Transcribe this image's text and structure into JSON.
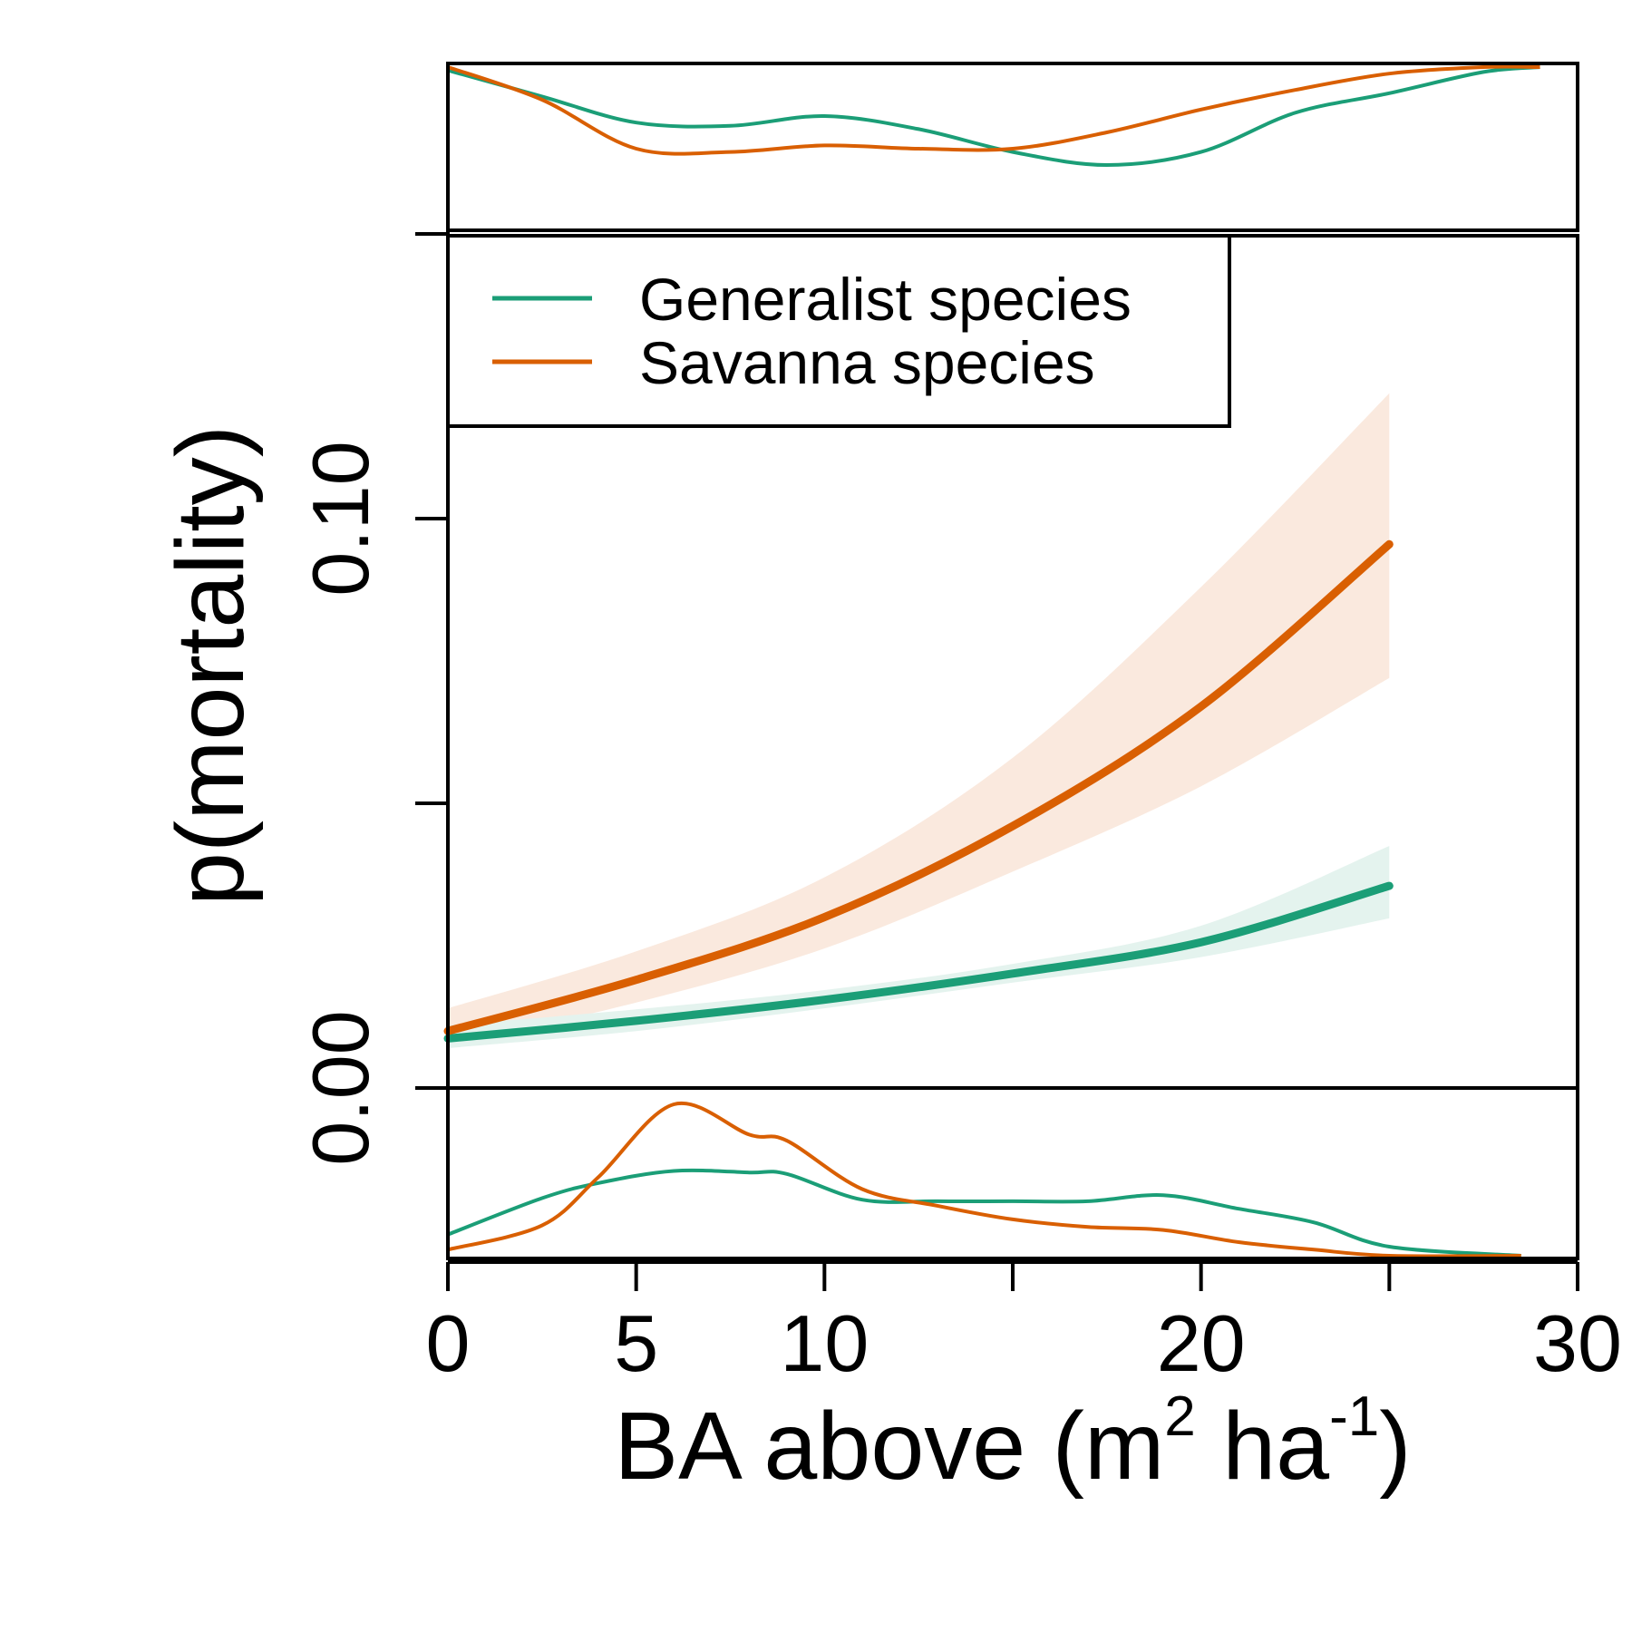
{
  "chart_data": {
    "type": "line",
    "title": "",
    "xlabel": {
      "main": "BA above (m",
      "sup1": "2",
      "mid": " ha",
      "sup2": "-1",
      "end": ")"
    },
    "ylabel": "p(mortality)",
    "xlim": [
      0,
      30
    ],
    "ylim": [
      0,
      0.18
    ],
    "x_ticks": [
      0,
      5,
      10,
      15,
      20,
      25,
      30
    ],
    "x_tick_labels": [
      "0",
      "5",
      "10",
      "",
      "20",
      "",
      "30"
    ],
    "y_ticks": [
      0,
      0.05,
      0.1,
      0.15
    ],
    "y_tick_labels": [
      "0.00",
      "",
      "0.10",
      ""
    ],
    "legend": {
      "position": "top-left",
      "entries": [
        "Generalist species",
        "Savanna species"
      ]
    },
    "colors": {
      "generalist": "#1b9e77",
      "savanna": "#d95f02",
      "generalist_band": "#e4f3ee",
      "savanna_band": "#fae9de"
    },
    "series": [
      {
        "name": "Generalist species",
        "color": "#1b9e77",
        "x": [
          0,
          5,
          10,
          15,
          20,
          25
        ],
        "y": [
          0.0087,
          0.0118,
          0.0155,
          0.0201,
          0.0256,
          0.0355
        ],
        "lower": [
          0.007,
          0.01,
          0.014,
          0.0185,
          0.023,
          0.0298
        ],
        "upper": [
          0.011,
          0.0138,
          0.0172,
          0.0218,
          0.0285,
          0.0425
        ]
      },
      {
        "name": "Savanna species",
        "color": "#d95f02",
        "x": [
          0,
          5,
          10,
          15,
          20,
          25
        ],
        "y": [
          0.01,
          0.019,
          0.03,
          0.046,
          0.067,
          0.0955
        ],
        "lower": [
          0.0075,
          0.015,
          0.0245,
          0.038,
          0.053,
          0.072
        ],
        "upper": [
          0.014,
          0.024,
          0.037,
          0.058,
          0.088,
          0.122
        ]
      }
    ],
    "marginal_top": {
      "x": [
        0,
        2.5,
        5,
        7.5,
        10,
        12.5,
        15,
        17.5,
        20,
        22.5,
        25,
        27.5,
        29
      ],
      "generalist": [
        0.98,
        0.82,
        0.66,
        0.64,
        0.7,
        0.62,
        0.48,
        0.4,
        0.48,
        0.72,
        0.84,
        0.97,
        1.0
      ],
      "savanna": [
        1.0,
        0.8,
        0.5,
        0.48,
        0.52,
        0.5,
        0.5,
        0.6,
        0.74,
        0.86,
        0.96,
        1.0,
        1.0
      ]
    },
    "marginal_bottom": {
      "x": [
        0,
        2.5,
        4,
        6,
        8,
        9,
        11,
        13,
        15,
        17,
        19,
        21,
        23,
        25,
        28.5
      ],
      "generalist": [
        0.14,
        0.38,
        0.48,
        0.56,
        0.55,
        0.54,
        0.37,
        0.36,
        0.36,
        0.36,
        0.4,
        0.31,
        0.22,
        0.06,
        0.0
      ],
      "savanna": [
        0.04,
        0.2,
        0.52,
        1.0,
        0.8,
        0.76,
        0.44,
        0.33,
        0.24,
        0.19,
        0.17,
        0.09,
        0.04,
        0.0,
        0.0
      ]
    }
  }
}
